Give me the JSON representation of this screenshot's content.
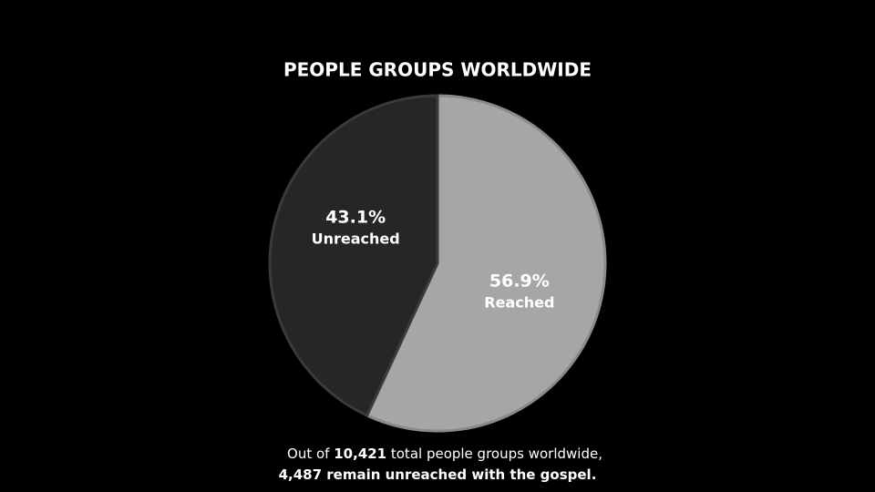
{
  "chart_data": {
    "type": "pie",
    "title": "PEOPLE GROUPS WORLDWIDE",
    "categories": [
      "Reached",
      "Unreached"
    ],
    "values": [
      56.9,
      43.1
    ],
    "value_labels": [
      "56.9%",
      "43.1%"
    ],
    "colors": [
      "#a6a6a6",
      "#262626"
    ],
    "annotation": {
      "line1": [
        "Out of ",
        "10,421",
        " total people groups worldwide,"
      ],
      "line2": [
        "4,487 remain unreached with the gospel."
      ]
    }
  }
}
